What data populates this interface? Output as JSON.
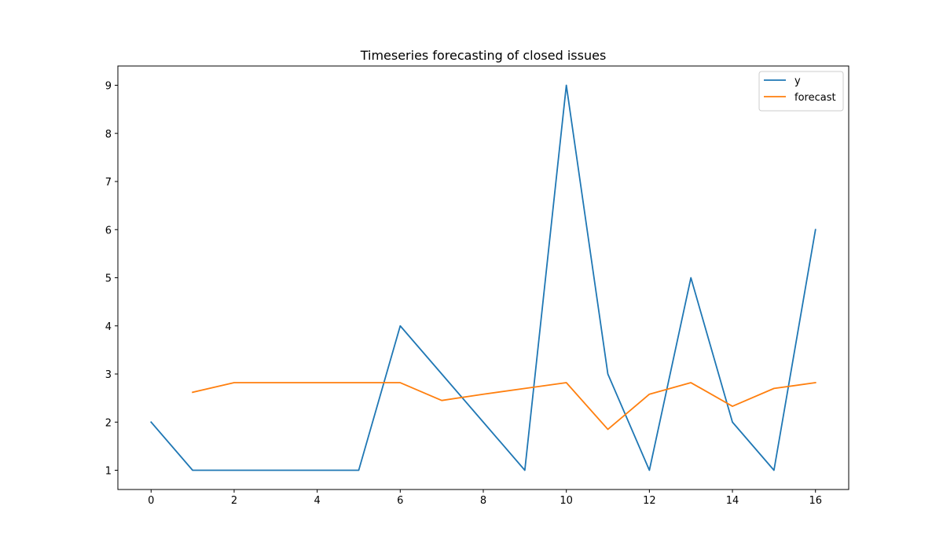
{
  "chart_data": {
    "type": "line",
    "title": "Timeseries forecasting of closed issues",
    "xlabel": "",
    "ylabel": "",
    "xlim": [
      -0.8,
      16.8
    ],
    "ylim": [
      0.6,
      9.4
    ],
    "xticks": [
      0,
      2,
      4,
      6,
      8,
      10,
      12,
      14,
      16
    ],
    "yticks": [
      1,
      2,
      3,
      4,
      5,
      6,
      7,
      8,
      9
    ],
    "grid": false,
    "legend_position": "top-right",
    "series": [
      {
        "name": "y",
        "color": "#1f77b4",
        "x": [
          0,
          1,
          2,
          3,
          4,
          5,
          6,
          7,
          8,
          9,
          10,
          11,
          12,
          13,
          14,
          15,
          16
        ],
        "values": [
          2,
          1,
          1,
          1,
          1,
          1,
          4,
          3,
          2,
          1,
          9,
          3,
          1,
          5,
          2,
          1,
          6
        ]
      },
      {
        "name": "forecast",
        "color": "#ff7f0e",
        "x": [
          1,
          2,
          3,
          4,
          5,
          6,
          7,
          8,
          9,
          10,
          11,
          12,
          13,
          14,
          15,
          16
        ],
        "values": [
          2.62,
          2.82,
          2.82,
          2.82,
          2.82,
          2.82,
          2.45,
          2.58,
          2.7,
          2.82,
          1.85,
          2.58,
          2.82,
          2.33,
          2.7,
          2.82
        ]
      }
    ]
  }
}
